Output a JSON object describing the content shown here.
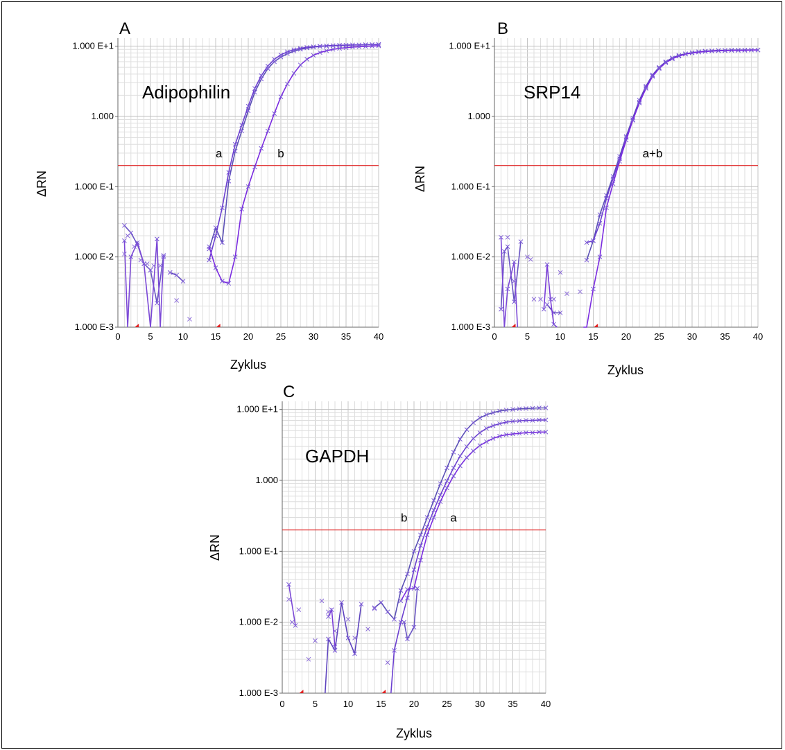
{
  "chart_data": [
    {
      "panel": "A",
      "type": "line",
      "title": "Adipophilin",
      "xlabel": "Zyklus",
      "ylabel": "ΔRN",
      "log_y": true,
      "xlim": [
        0,
        40
      ],
      "ylim": [
        0.001,
        13
      ],
      "x_ticks": [
        "0",
        "5",
        "10",
        "15",
        "20",
        "25",
        "30",
        "35",
        "40"
      ],
      "y_ticks": [
        "1.000 E-3",
        "1.000 E-2",
        "1.000 E-1",
        "1.000",
        "1.000 E+1"
      ],
      "threshold": 0.2,
      "baseline_markers": [
        3,
        15.5
      ],
      "annotations": [
        {
          "text": "a",
          "x": 15.5,
          "y": 0.2
        },
        {
          "text": "b",
          "x": 25,
          "y": 0.2
        }
      ],
      "series": [
        {
          "x": [
            14,
            15,
            16,
            17,
            18,
            19,
            20,
            21,
            22,
            23,
            24,
            25,
            26,
            27,
            28,
            29,
            30,
            31,
            32,
            33,
            34,
            35,
            36,
            37,
            38,
            39,
            40
          ],
          "y": [
            0.013,
            0.026,
            0.016,
            0.12,
            0.32,
            0.62,
            1.2,
            2.2,
            3.4,
            4.8,
            6.0,
            7.0,
            7.8,
            8.5,
            9.0,
            9.4,
            9.7,
            9.9,
            10.0,
            10.1,
            10.2,
            10.3,
            10.4,
            10.4,
            10.5,
            10.5,
            10.6
          ]
        },
        {
          "x": [
            14,
            15,
            16,
            17,
            18,
            19,
            20,
            21,
            22,
            23,
            24,
            25,
            26,
            27,
            28,
            29,
            30,
            31,
            32,
            33,
            34,
            35,
            36,
            37,
            38,
            39,
            40
          ],
          "y": [
            0.009,
            0.02,
            0.05,
            0.16,
            0.4,
            0.75,
            1.4,
            2.5,
            3.8,
            5.2,
            6.5,
            7.5,
            8.3,
            8.9,
            9.3,
            9.6,
            9.8,
            10.0,
            10.1,
            10.2,
            10.3,
            10.3,
            10.4,
            10.4,
            10.4,
            10.5,
            10.5
          ]
        },
        {
          "x": [
            14,
            15,
            16,
            17,
            18,
            19,
            20,
            21,
            22,
            23,
            24,
            25,
            26,
            27,
            28,
            29,
            30,
            31,
            32,
            33,
            34,
            35,
            36,
            37,
            38,
            39,
            40
          ],
          "y": [
            0.014,
            0.007,
            0.0045,
            0.0042,
            0.01,
            0.048,
            0.1,
            0.19,
            0.35,
            0.62,
            1.1,
            1.9,
            2.9,
            4.1,
            5.4,
            6.5,
            7.4,
            8.1,
            8.6,
            9.0,
            9.3,
            9.5,
            9.7,
            9.8,
            9.9,
            10.0,
            10.1
          ]
        },
        {
          "x": [
            1,
            2,
            3,
            4,
            5,
            6,
            7
          ],
          "y": [
            0.028,
            0.022,
            0.015,
            0.008,
            0.0065,
            0.0022,
            0.0105
          ]
        },
        {
          "x": [
            1,
            1.5,
            2,
            3,
            4,
            5,
            6,
            6.5,
            7
          ],
          "y": [
            0.017,
            0.001,
            0.01,
            0.016,
            0.008,
            0.001,
            0.018,
            0.001,
            0.01
          ]
        },
        {
          "x": [
            8,
            9,
            10
          ],
          "y": [
            0.006,
            0.0055,
            0.0045
          ]
        }
      ],
      "scatter": {
        "x": [
          1,
          1.5,
          2.5,
          3.5,
          4.5,
          5.5,
          6.5,
          8,
          9,
          11
        ],
        "y": [
          0.011,
          0.02,
          0.014,
          0.009,
          0.008,
          0.0075,
          0.0075,
          0.006,
          0.0024,
          0.0013
        ]
      }
    },
    {
      "panel": "B",
      "type": "line",
      "title": "SRP14",
      "xlabel": "Zyklus",
      "ylabel": "ΔRN",
      "log_y": true,
      "xlim": [
        0,
        40
      ],
      "ylim": [
        0.001,
        13
      ],
      "x_ticks": [
        "0",
        "5",
        "10",
        "15",
        "20",
        "25",
        "30",
        "35",
        "40"
      ],
      "y_ticks": [
        "1.000 E-3",
        "1.000 E-2",
        "1.000 E-1",
        "1.000",
        "1.000 E+1"
      ],
      "threshold": 0.2,
      "baseline_markers": [
        3,
        15.5
      ],
      "annotations": [
        {
          "text": "a+b",
          "x": 24,
          "y": 0.2
        }
      ],
      "series": [
        {
          "x": [
            14,
            15,
            16,
            17,
            18,
            19,
            20,
            21,
            22,
            23,
            24,
            25,
            26,
            27,
            28,
            29,
            30,
            31,
            32,
            33,
            34,
            35,
            36,
            37,
            38,
            39,
            40
          ],
          "y": [
            0.009,
            0.017,
            0.04,
            0.075,
            0.14,
            0.27,
            0.52,
            0.95,
            1.7,
            2.7,
            3.9,
            5.0,
            6.0,
            6.8,
            7.4,
            7.8,
            8.1,
            8.3,
            8.5,
            8.6,
            8.7,
            8.7,
            8.8,
            8.8,
            8.8,
            8.8,
            8.8
          ]
        },
        {
          "x": [
            14,
            15,
            16,
            17,
            18,
            19,
            20,
            21,
            22,
            23,
            24,
            25,
            26,
            27,
            28,
            29,
            30,
            31,
            32,
            33,
            34,
            35,
            36,
            37,
            38,
            39,
            40
          ],
          "y": [
            0.016,
            0.017,
            0.03,
            0.068,
            0.13,
            0.25,
            0.5,
            0.9,
            1.6,
            2.6,
            3.8,
            4.9,
            5.9,
            6.7,
            7.3,
            7.7,
            8.0,
            8.3,
            8.4,
            8.5,
            8.6,
            8.7,
            8.7,
            8.7,
            8.8,
            8.8,
            8.8
          ]
        },
        {
          "x": [
            13.5,
            14,
            15,
            16,
            17,
            18,
            19,
            20,
            21,
            22,
            23,
            24,
            25,
            26,
            27,
            28,
            29,
            30,
            31,
            32,
            33,
            34,
            35,
            36,
            37,
            38,
            39,
            40
          ],
          "y": [
            0.001,
            0.001,
            0.0035,
            0.01,
            0.05,
            0.11,
            0.23,
            0.46,
            0.88,
            1.55,
            2.5,
            3.7,
            4.8,
            5.8,
            6.6,
            7.2,
            7.7,
            8.0,
            8.2,
            8.4,
            8.5,
            8.6,
            8.6,
            8.7,
            8.7,
            8.7,
            8.8,
            8.8
          ]
        },
        {
          "x": [
            1,
            1.5,
            2,
            3,
            4
          ],
          "y": [
            0.0018,
            0.012,
            0.014,
            0.0023,
            0.0165
          ]
        },
        {
          "x": [
            1,
            1.5,
            2,
            3,
            3.5
          ],
          "y": [
            0.019,
            0.001,
            0.0035,
            0.0085,
            0.001
          ]
        },
        {
          "x": [
            8,
            9,
            10
          ],
          "y": [
            0.0021,
            0.0016,
            0.0016
          ]
        },
        {
          "x": [
            7.5,
            8,
            8.5,
            9,
            9.5
          ],
          "y": [
            0.0018,
            0.0078,
            0.0025,
            0.0011,
            0.001
          ]
        }
      ],
      "scatter": {
        "x": [
          2,
          3,
          5,
          5.5,
          6,
          7,
          9,
          10,
          11,
          13
        ],
        "y": [
          0.019,
          0.0045,
          0.01,
          0.0092,
          0.0025,
          0.0025,
          0.0025,
          0.006,
          0.003,
          0.0032
        ]
      }
    },
    {
      "panel": "C",
      "type": "line",
      "title": "GAPDH",
      "xlabel": "Zyklus",
      "ylabel": "ΔRN",
      "log_y": true,
      "xlim": [
        0,
        40
      ],
      "ylim": [
        0.001,
        13
      ],
      "x_ticks": [
        "0",
        "5",
        "10",
        "15",
        "20",
        "25",
        "30",
        "35",
        "40"
      ],
      "y_ticks": [
        "1.000 E-3",
        "1.000 E-2",
        "1.000 E-1",
        "1.000",
        "1.000 E+1"
      ],
      "threshold": 0.2,
      "baseline_markers": [
        3,
        15.5
      ],
      "annotations": [
        {
          "text": "b",
          "x": 18.5,
          "y": 0.2
        },
        {
          "text": "a",
          "x": 26,
          "y": 0.2
        }
      ],
      "series": [
        {
          "x": [
            14,
            15,
            16,
            17,
            18,
            19,
            20,
            21,
            22,
            23,
            24,
            25,
            26,
            27,
            28,
            29,
            30,
            31,
            32,
            33,
            34,
            35,
            36,
            37,
            38,
            39,
            40
          ],
          "y": [
            0.016,
            0.019,
            0.014,
            0.011,
            0.028,
            0.048,
            0.1,
            0.17,
            0.3,
            0.52,
            0.9,
            1.5,
            2.5,
            3.8,
            5.2,
            6.5,
            7.6,
            8.4,
            9.0,
            9.5,
            9.8,
            10.0,
            10.2,
            10.3,
            10.4,
            10.5,
            10.5
          ]
        },
        {
          "x": [
            16.5,
            17,
            18,
            19,
            20,
            21,
            22,
            23,
            24,
            25,
            26,
            27,
            28,
            29,
            30,
            31,
            32,
            33,
            34,
            35,
            36,
            37,
            38,
            39,
            40
          ],
          "y": [
            0.001,
            0.004,
            0.01,
            0.022,
            0.055,
            0.12,
            0.22,
            0.38,
            0.62,
            0.98,
            1.5,
            2.2,
            3.0,
            3.9,
            4.7,
            5.4,
            5.9,
            6.3,
            6.6,
            6.8,
            6.9,
            7.0,
            7.0,
            7.1,
            7.1
          ]
        },
        {
          "x": [
            18,
            19,
            20,
            21,
            22,
            23,
            24,
            25,
            26,
            27,
            28,
            29,
            30,
            31,
            32,
            33,
            34,
            35,
            36,
            37,
            38,
            39,
            40
          ],
          "y": [
            0.02,
            0.029,
            0.03,
            0.075,
            0.17,
            0.3,
            0.5,
            0.78,
            1.15,
            1.6,
            2.1,
            2.6,
            3.1,
            3.5,
            3.9,
            4.2,
            4.4,
            4.5,
            4.6,
            4.7,
            4.7,
            4.8,
            4.8
          ]
        },
        {
          "x": [
            18.5,
            19,
            20,
            20.5
          ],
          "y": [
            0.01,
            0.0058,
            0.0085,
            0.03
          ]
        },
        {
          "x": [
            1,
            2
          ],
          "y": [
            0.034,
            0.009
          ]
        },
        {
          "x": [
            6.5,
            7,
            8,
            9,
            10,
            11,
            12
          ],
          "y": [
            0.001,
            0.0058,
            0.004,
            0.019,
            0.006,
            0.0036,
            0.018
          ]
        },
        {
          "x": [
            7,
            7.5,
            8
          ],
          "y": [
            0.012,
            0.015,
            0.0045
          ]
        }
      ],
      "scatter": {
        "x": [
          1,
          1.5,
          2.5,
          4,
          5,
          6,
          7,
          8,
          10,
          11,
          13,
          14,
          16
        ],
        "y": [
          0.021,
          0.01,
          0.015,
          0.003,
          0.0055,
          0.02,
          0.014,
          0.0075,
          0.011,
          0.006,
          0.008,
          0.0155,
          0.0027
        ]
      }
    }
  ]
}
